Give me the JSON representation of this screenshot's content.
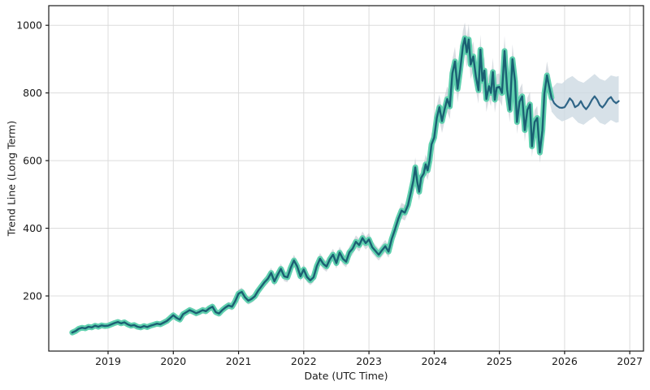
{
  "chart_data": {
    "type": "line",
    "title": "",
    "xlabel": "Date (UTC Time)",
    "ylabel": "Trend Line (Long Term)",
    "grid": true,
    "legend": "none",
    "x_range": [
      2018.09,
      2027.21
    ],
    "y_range": [
      37,
      1058
    ],
    "x_ticks": [
      2019,
      2020,
      2021,
      2022,
      2023,
      2024,
      2025,
      2026,
      2027
    ],
    "x_tick_labels": [
      "2019",
      "2020",
      "2021",
      "2022",
      "2023",
      "2024",
      "2025",
      "2026",
      "2027"
    ],
    "y_ticks": [
      200,
      400,
      600,
      800,
      1000
    ],
    "y_tick_labels": [
      "200",
      "400",
      "600",
      "800",
      "1000"
    ],
    "colors": {
      "historical_line": "#1b6073",
      "historical_glow": "#5fd0ae",
      "historical_range": "#aab4bf",
      "forecast_line": "#2f6587",
      "forecast_band": "#cdd9e2",
      "grid": "#dcdcdc",
      "spine": "#1a1a1a",
      "text": "#1a1a1a",
      "background": "#ffffff"
    },
    "series": [
      {
        "name": "historical-trend",
        "points": [
          [
            2018.45,
            92
          ],
          [
            2018.5,
            96
          ],
          [
            2018.55,
            103
          ],
          [
            2018.6,
            106
          ],
          [
            2018.65,
            104
          ],
          [
            2018.7,
            109
          ],
          [
            2018.75,
            107
          ],
          [
            2018.8,
            112
          ],
          [
            2018.85,
            109
          ],
          [
            2018.9,
            113
          ],
          [
            2018.95,
            111
          ],
          [
            2019.0,
            112
          ],
          [
            2019.05,
            116
          ],
          [
            2019.1,
            120
          ],
          [
            2019.15,
            123
          ],
          [
            2019.2,
            119
          ],
          [
            2019.25,
            122
          ],
          [
            2019.3,
            116
          ],
          [
            2019.35,
            112
          ],
          [
            2019.4,
            114
          ],
          [
            2019.45,
            109
          ],
          [
            2019.5,
            107
          ],
          [
            2019.55,
            111
          ],
          [
            2019.6,
            108
          ],
          [
            2019.65,
            112
          ],
          [
            2019.7,
            115
          ],
          [
            2019.75,
            118
          ],
          [
            2019.8,
            116
          ],
          [
            2019.85,
            121
          ],
          [
            2019.9,
            126
          ],
          [
            2019.95,
            134
          ],
          [
            2020.0,
            143
          ],
          [
            2020.05,
            135
          ],
          [
            2020.1,
            130
          ],
          [
            2020.15,
            146
          ],
          [
            2020.2,
            152
          ],
          [
            2020.25,
            158
          ],
          [
            2020.3,
            154
          ],
          [
            2020.35,
            149
          ],
          [
            2020.4,
            153
          ],
          [
            2020.45,
            158
          ],
          [
            2020.5,
            155
          ],
          [
            2020.55,
            163
          ],
          [
            2020.6,
            168
          ],
          [
            2020.65,
            152
          ],
          [
            2020.7,
            148
          ],
          [
            2020.75,
            158
          ],
          [
            2020.8,
            166
          ],
          [
            2020.85,
            172
          ],
          [
            2020.9,
            168
          ],
          [
            2020.95,
            185
          ],
          [
            2021.0,
            207
          ],
          [
            2021.05,
            212
          ],
          [
            2021.1,
            196
          ],
          [
            2021.15,
            186
          ],
          [
            2021.2,
            191
          ],
          [
            2021.25,
            199
          ],
          [
            2021.3,
            215
          ],
          [
            2021.35,
            228
          ],
          [
            2021.4,
            241
          ],
          [
            2021.45,
            251
          ],
          [
            2021.5,
            268
          ],
          [
            2021.55,
            243
          ],
          [
            2021.6,
            262
          ],
          [
            2021.65,
            280
          ],
          [
            2021.7,
            258
          ],
          [
            2021.75,
            255
          ],
          [
            2021.8,
            283
          ],
          [
            2021.85,
            305
          ],
          [
            2021.9,
            287
          ],
          [
            2021.95,
            258
          ],
          [
            2022.0,
            278
          ],
          [
            2022.05,
            256
          ],
          [
            2022.1,
            246
          ],
          [
            2022.15,
            255
          ],
          [
            2022.2,
            288
          ],
          [
            2022.25,
            310
          ],
          [
            2022.3,
            295
          ],
          [
            2022.35,
            287
          ],
          [
            2022.4,
            308
          ],
          [
            2022.45,
            322
          ],
          [
            2022.5,
            297
          ],
          [
            2022.55,
            328
          ],
          [
            2022.6,
            310
          ],
          [
            2022.65,
            301
          ],
          [
            2022.7,
            329
          ],
          [
            2022.75,
            340
          ],
          [
            2022.8,
            360
          ],
          [
            2022.85,
            350
          ],
          [
            2022.9,
            371
          ],
          [
            2022.95,
            356
          ],
          [
            2023.0,
            367
          ],
          [
            2023.05,
            344
          ],
          [
            2023.1,
            333
          ],
          [
            2023.15,
            322
          ],
          [
            2023.2,
            335
          ],
          [
            2023.25,
            347
          ],
          [
            2023.3,
            331
          ],
          [
            2023.35,
            369
          ],
          [
            2023.4,
            397
          ],
          [
            2023.45,
            428
          ],
          [
            2023.5,
            452
          ],
          [
            2023.55,
            446
          ],
          [
            2023.6,
            469
          ],
          [
            2023.64,
            505
          ],
          [
            2023.68,
            540
          ],
          [
            2023.71,
            580
          ],
          [
            2023.74,
            538
          ],
          [
            2023.77,
            508
          ],
          [
            2023.8,
            549
          ],
          [
            2023.84,
            562
          ],
          [
            2023.87,
            589
          ],
          [
            2023.9,
            571
          ],
          [
            2023.93,
            600
          ],
          [
            2023.96,
            648
          ],
          [
            2024.0,
            668
          ],
          [
            2024.04,
            726
          ],
          [
            2024.08,
            758
          ],
          [
            2024.12,
            717
          ],
          [
            2024.16,
            752
          ],
          [
            2024.2,
            782
          ],
          [
            2024.24,
            760
          ],
          [
            2024.28,
            858
          ],
          [
            2024.32,
            893
          ],
          [
            2024.36,
            812
          ],
          [
            2024.4,
            870
          ],
          [
            2024.44,
            938
          ],
          [
            2024.47,
            962
          ],
          [
            2024.5,
            920
          ],
          [
            2024.53,
            958
          ],
          [
            2024.56,
            884
          ],
          [
            2024.6,
            908
          ],
          [
            2024.64,
            849
          ],
          [
            2024.68,
            808
          ],
          [
            2024.71,
            928
          ],
          [
            2024.74,
            836
          ],
          [
            2024.77,
            866
          ],
          [
            2024.8,
            782
          ],
          [
            2024.84,
            820
          ],
          [
            2024.87,
            800
          ],
          [
            2024.9,
            862
          ],
          [
            2024.93,
            780
          ],
          [
            2024.96,
            816
          ],
          [
            2025.0,
            818
          ],
          [
            2025.04,
            800
          ],
          [
            2025.08,
            924
          ],
          [
            2025.12,
            810
          ],
          [
            2025.16,
            750
          ],
          [
            2025.2,
            900
          ],
          [
            2025.24,
            834
          ],
          [
            2025.27,
            714
          ],
          [
            2025.31,
            774
          ],
          [
            2025.35,
            790
          ],
          [
            2025.39,
            690
          ],
          [
            2025.43,
            750
          ],
          [
            2025.47,
            766
          ],
          [
            2025.5,
            642
          ],
          [
            2025.54,
            714
          ],
          [
            2025.58,
            726
          ],
          [
            2025.62,
            624
          ],
          [
            2025.66,
            690
          ],
          [
            2025.69,
            798
          ],
          [
            2025.73,
            852
          ],
          [
            2025.76,
            822
          ],
          [
            2025.8,
            786
          ]
        ]
      },
      {
        "name": "forecast-trend",
        "points": [
          [
            2025.8,
            786
          ],
          [
            2025.84,
            770
          ],
          [
            2025.88,
            762
          ],
          [
            2025.92,
            757
          ],
          [
            2025.96,
            756
          ],
          [
            2026.0,
            758
          ],
          [
            2026.04,
            770
          ],
          [
            2026.08,
            784
          ],
          [
            2026.12,
            776
          ],
          [
            2026.16,
            758
          ],
          [
            2026.21,
            764
          ],
          [
            2026.25,
            776
          ],
          [
            2026.29,
            760
          ],
          [
            2026.33,
            752
          ],
          [
            2026.37,
            762
          ],
          [
            2026.42,
            780
          ],
          [
            2026.46,
            790
          ],
          [
            2026.5,
            780
          ],
          [
            2026.54,
            764
          ],
          [
            2026.58,
            757
          ],
          [
            2026.62,
            766
          ],
          [
            2026.67,
            782
          ],
          [
            2026.71,
            788
          ],
          [
            2026.75,
            776
          ],
          [
            2026.79,
            770
          ],
          [
            2026.83,
            776
          ]
        ]
      }
    ],
    "bands": [
      {
        "name": "historical-range",
        "mode": "pct",
        "pct": 0.045,
        "series_index": 0
      },
      {
        "name": "forecast-confidence",
        "mode": "explicit",
        "upper": [
          [
            2025.8,
            812
          ],
          [
            2025.88,
            830
          ],
          [
            2025.96,
            828
          ],
          [
            2026.04,
            842
          ],
          [
            2026.12,
            850
          ],
          [
            2026.21,
            836
          ],
          [
            2026.29,
            830
          ],
          [
            2026.37,
            842
          ],
          [
            2026.46,
            856
          ],
          [
            2026.54,
            842
          ],
          [
            2026.62,
            836
          ],
          [
            2026.71,
            852
          ],
          [
            2026.79,
            848
          ],
          [
            2026.83,
            850
          ]
        ],
        "lower": [
          [
            2025.8,
            745
          ],
          [
            2025.88,
            726
          ],
          [
            2025.96,
            716
          ],
          [
            2026.04,
            722
          ],
          [
            2026.12,
            730
          ],
          [
            2026.21,
            712
          ],
          [
            2026.29,
            706
          ],
          [
            2026.37,
            718
          ],
          [
            2026.46,
            730
          ],
          [
            2026.54,
            712
          ],
          [
            2026.62,
            706
          ],
          [
            2026.71,
            720
          ],
          [
            2026.79,
            712
          ],
          [
            2026.83,
            714
          ]
        ]
      }
    ]
  }
}
